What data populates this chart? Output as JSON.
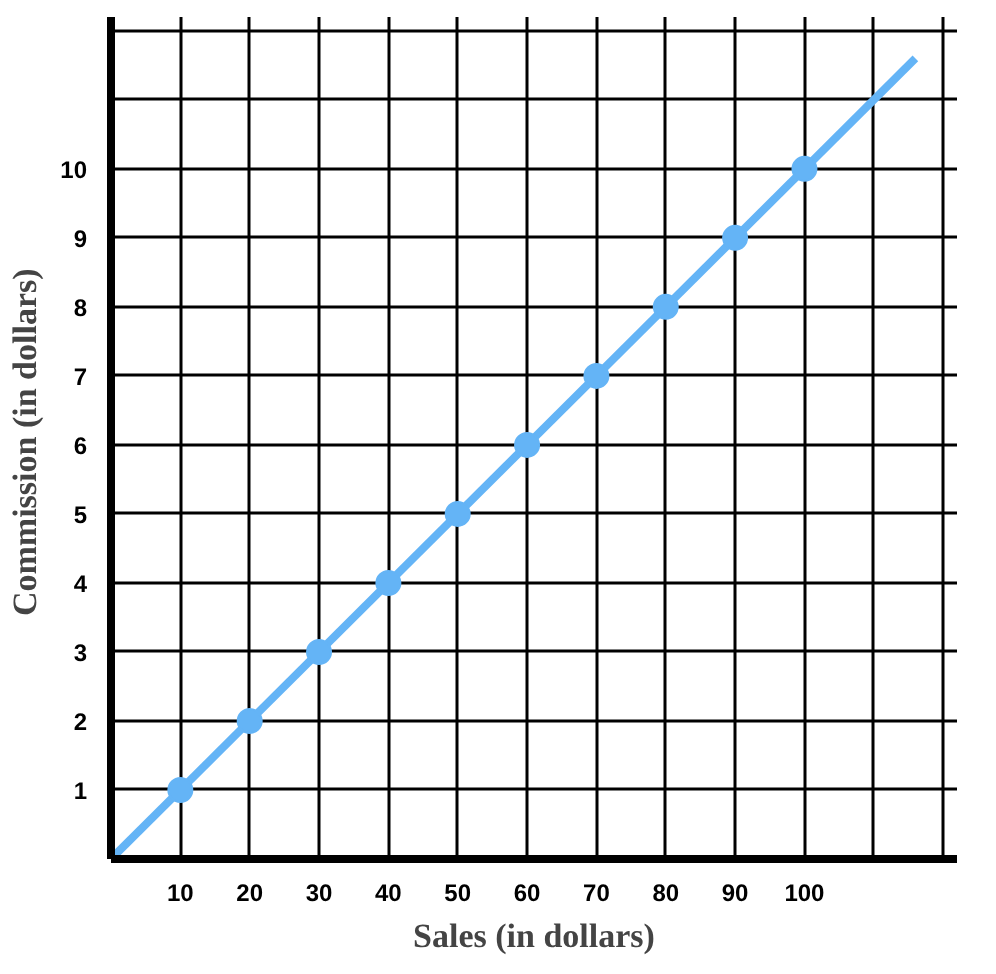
{
  "chart_data": {
    "type": "line",
    "xlabel": "Sales (in dollars)",
    "ylabel": "Commission  (in dollars)",
    "series": [
      {
        "color": "#64b4f6",
        "x": [
          0,
          116
        ],
        "values": [
          0,
          11.6
        ],
        "marker": "none"
      },
      {
        "type": "scatter",
        "color": "#64b4f6",
        "x": [
          10,
          20,
          30,
          40,
          50,
          60,
          70,
          80,
          90,
          100
        ],
        "values": [
          1,
          2,
          3,
          4,
          5,
          6,
          7,
          8,
          9,
          10
        ],
        "marker": "circle"
      }
    ],
    "xlim": [
      0,
      122
    ],
    "ylim": [
      0,
      12.2
    ],
    "xticks": [
      10,
      20,
      30,
      40,
      50,
      60,
      70,
      80,
      90,
      100,
      {
        "value": 110,
        "label": null
      },
      {
        "value": 120,
        "label": null
      }
    ],
    "yticks": [
      1,
      2,
      3,
      4,
      5,
      6,
      7,
      8,
      9,
      10,
      {
        "value": 11,
        "label": null
      },
      {
        "value": 12,
        "label": null
      }
    ],
    "grid": true
  }
}
